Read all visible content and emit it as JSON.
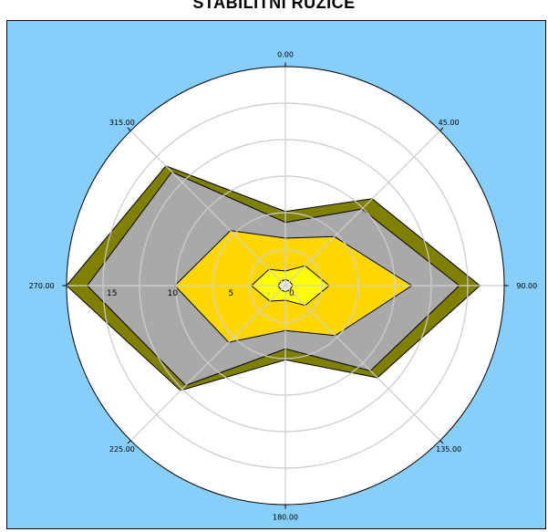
{
  "title": "STABILITNÍ RŮŽICE",
  "colors": {
    "background": "#87cefa",
    "plot_face": "#ffffff",
    "grid": "#d0d0d0",
    "edge": "#000000"
  },
  "chart_data": {
    "type": "radar",
    "title": "STABILITNÍ RŮŽICE",
    "angles": [
      0,
      45,
      90,
      135,
      180,
      225,
      270,
      315
    ],
    "angle_labels": [
      "0.00",
      "45.00",
      "90.00",
      "135.00",
      "180.00",
      "225.00",
      "270.00",
      "315.00"
    ],
    "radial_ticks": [
      0,
      5,
      10,
      15
    ],
    "rmax": 18,
    "grid": true,
    "direction": "clockwise",
    "zero_location": "top",
    "series": [
      {
        "color": "#808000",
        "values": [
          6.1,
          10.1,
          16,
          10.7,
          6.1,
          12.2,
          18,
          13.9
        ]
      },
      {
        "color": "#a9a9a9",
        "values": [
          5.2,
          8.9,
          14.3,
          9.9,
          5.2,
          11.6,
          16.3,
          13.2
        ]
      },
      {
        "color": "#ffd700",
        "values": [
          3.9,
          5.7,
          10.4,
          5.8,
          3.7,
          6.6,
          9.1,
          6.4
        ]
      },
      {
        "color": "#ffff00",
        "values": [
          1.2,
          2.3,
          3.6,
          2.3,
          1.2,
          1.8,
          2.8,
          1.9
        ]
      },
      {
        "color": "#ffffe0",
        "values": [
          0.5,
          0.5,
          0.6,
          0.5,
          0.5,
          0.5,
          0.6,
          0.5
        ]
      }
    ]
  }
}
